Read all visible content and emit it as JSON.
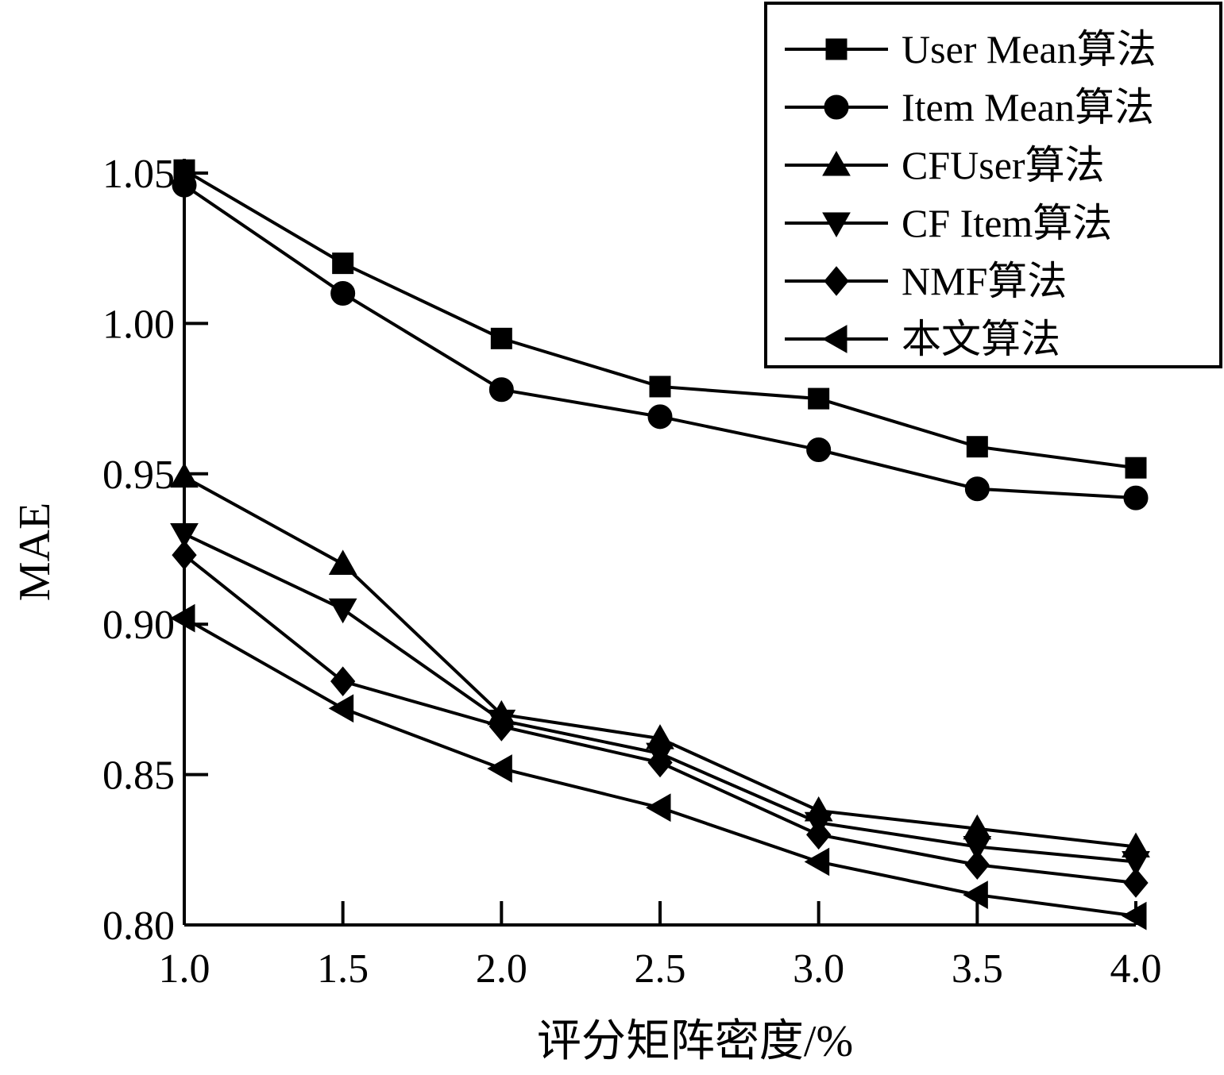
{
  "chart_data": {
    "type": "line",
    "xlabel": "评分矩阵密度/%",
    "ylabel": "MAE",
    "x": [
      1.0,
      1.5,
      2.0,
      2.5,
      3.0,
      3.5,
      4.0
    ],
    "x_tick_labels": [
      "1.0",
      "1.5",
      "2.0",
      "2.5",
      "3.0",
      "3.5",
      "4.0"
    ],
    "y_ticks": [
      0.8,
      0.85,
      0.9,
      0.95,
      1.0,
      1.05
    ],
    "y_tick_labels": [
      "0.80",
      "0.85",
      "0.90",
      "0.95",
      "1.00",
      "1.05"
    ],
    "xlim": [
      1.0,
      4.0
    ],
    "ylim": [
      0.8,
      1.05
    ],
    "grid": false,
    "legend_position": "top-right",
    "series": [
      {
        "name": "User Mean算法",
        "marker": "square",
        "values": [
          1.051,
          1.02,
          0.995,
          0.979,
          0.975,
          0.959,
          0.952
        ]
      },
      {
        "name": "Item Mean算法",
        "marker": "circle",
        "values": [
          1.046,
          1.01,
          0.978,
          0.969,
          0.958,
          0.945,
          0.942
        ]
      },
      {
        "name": "CFUser算法",
        "marker": "triangle-up",
        "values": [
          0.949,
          0.92,
          0.87,
          0.862,
          0.838,
          0.832,
          0.826
        ]
      },
      {
        "name": "CF Item算法",
        "marker": "triangle-down",
        "values": [
          0.93,
          0.905,
          0.868,
          0.857,
          0.834,
          0.826,
          0.821
        ]
      },
      {
        "name": "NMF算法",
        "marker": "diamond",
        "values": [
          0.923,
          0.881,
          0.866,
          0.854,
          0.83,
          0.82,
          0.814
        ]
      },
      {
        "name": "本文算法",
        "marker": "triangle-left",
        "values": [
          0.902,
          0.872,
          0.852,
          0.839,
          0.821,
          0.81,
          0.803
        ]
      }
    ]
  }
}
